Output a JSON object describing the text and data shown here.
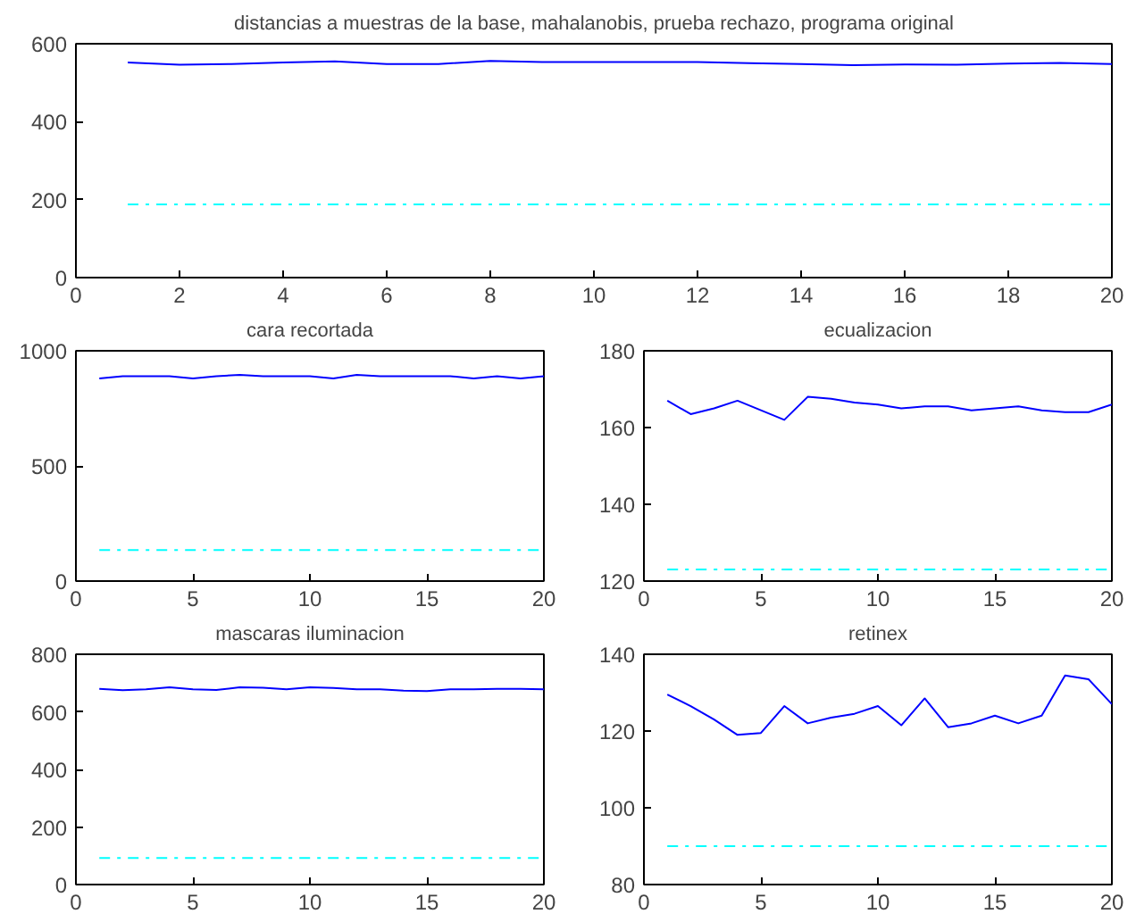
{
  "chart_data": [
    {
      "type": "line",
      "title": "distancias a muestras de la base, mahalanobis, prueba rechazo, programa original",
      "x": [
        1,
        2,
        3,
        4,
        5,
        6,
        7,
        8,
        9,
        10,
        11,
        12,
        13,
        14,
        15,
        16,
        17,
        18,
        19,
        20
      ],
      "xlim": [
        0,
        20
      ],
      "xticks": [
        0,
        2,
        4,
        6,
        8,
        10,
        12,
        14,
        16,
        18,
        20
      ],
      "ylim": [
        0,
        600
      ],
      "yticks": [
        0,
        200,
        400,
        600
      ],
      "grid": false,
      "series": [
        {
          "color": "#0000ff",
          "line_style": "solid",
          "values": [
            552,
            546,
            548,
            552,
            555,
            548,
            548,
            556,
            553,
            553,
            553,
            553,
            550,
            548,
            545,
            547,
            546,
            549,
            551,
            548
          ]
        },
        {
          "color": "#00ffff",
          "line_style": "dashed",
          "values": [
            188,
            188,
            188,
            188,
            188,
            188,
            188,
            188,
            188,
            188,
            188,
            188,
            188,
            188,
            188,
            188,
            188,
            188,
            188,
            188
          ]
        }
      ]
    },
    {
      "type": "line",
      "title": "cara recortada",
      "x": [
        1,
        2,
        3,
        4,
        5,
        6,
        7,
        8,
        9,
        10,
        11,
        12,
        13,
        14,
        15,
        16,
        17,
        18,
        19,
        20
      ],
      "xlim": [
        0,
        20
      ],
      "xticks": [
        0,
        5,
        10,
        15,
        20
      ],
      "ylim": [
        0,
        1000
      ],
      "yticks": [
        0,
        500,
        1000
      ],
      "grid": false,
      "series": [
        {
          "color": "#0000ff",
          "line_style": "solid",
          "values": [
            880,
            890,
            890,
            890,
            880,
            890,
            895,
            890,
            890,
            890,
            880,
            895,
            890,
            890,
            890,
            890,
            880,
            890,
            880,
            890
          ]
        },
        {
          "color": "#00ffff",
          "line_style": "dashed",
          "values": [
            135,
            135,
            135,
            135,
            135,
            135,
            135,
            135,
            135,
            135,
            135,
            135,
            135,
            135,
            135,
            135,
            135,
            135,
            135,
            135
          ]
        }
      ]
    },
    {
      "type": "line",
      "title": "ecualizacion",
      "x": [
        1,
        2,
        3,
        4,
        5,
        6,
        7,
        8,
        9,
        10,
        11,
        12,
        13,
        14,
        15,
        16,
        17,
        18,
        19,
        20
      ],
      "xlim": [
        0,
        20
      ],
      "xticks": [
        0,
        5,
        10,
        15,
        20
      ],
      "ylim": [
        120,
        180
      ],
      "yticks": [
        120,
        140,
        160,
        180
      ],
      "grid": false,
      "series": [
        {
          "color": "#0000ff",
          "line_style": "solid",
          "values": [
            167,
            163.5,
            165,
            167,
            164.5,
            162,
            168,
            167.5,
            166.5,
            166,
            165,
            165.5,
            165.5,
            164.5,
            165,
            165.5,
            164.5,
            164,
            164,
            166
          ]
        },
        {
          "color": "#00ffff",
          "line_style": "dashed",
          "values": [
            123,
            123,
            123,
            123,
            123,
            123,
            123,
            123,
            123,
            123,
            123,
            123,
            123,
            123,
            123,
            123,
            123,
            123,
            123,
            123
          ]
        }
      ]
    },
    {
      "type": "line",
      "title": "mascaras iluminacion",
      "x": [
        1,
        2,
        3,
        4,
        5,
        6,
        7,
        8,
        9,
        10,
        11,
        12,
        13,
        14,
        15,
        16,
        17,
        18,
        19,
        20
      ],
      "xlim": [
        0,
        20
      ],
      "xticks": [
        0,
        5,
        10,
        15,
        20
      ],
      "ylim": [
        0,
        800
      ],
      "yticks": [
        0,
        200,
        400,
        600,
        800
      ],
      "grid": false,
      "series": [
        {
          "color": "#0000ff",
          "line_style": "solid",
          "values": [
            680,
            675,
            678,
            685,
            678,
            676,
            685,
            684,
            678,
            685,
            683,
            678,
            678,
            674,
            672,
            678,
            678,
            680,
            680,
            678
          ]
        },
        {
          "color": "#00ffff",
          "line_style": "dashed",
          "values": [
            92,
            92,
            92,
            92,
            92,
            92,
            92,
            92,
            92,
            92,
            92,
            92,
            92,
            92,
            92,
            92,
            92,
            92,
            92,
            92
          ]
        }
      ]
    },
    {
      "type": "line",
      "title": "retinex",
      "x": [
        1,
        2,
        3,
        4,
        5,
        6,
        7,
        8,
        9,
        10,
        11,
        12,
        13,
        14,
        15,
        16,
        17,
        18,
        19,
        20
      ],
      "xlim": [
        0,
        20
      ],
      "xticks": [
        0,
        5,
        10,
        15,
        20
      ],
      "ylim": [
        80,
        140
      ],
      "yticks": [
        80,
        100,
        120,
        140
      ],
      "grid": false,
      "series": [
        {
          "color": "#0000ff",
          "line_style": "solid",
          "values": [
            129.5,
            126.5,
            123,
            119,
            119.5,
            126.5,
            122,
            123.5,
            124.5,
            126.5,
            121.5,
            128.5,
            121,
            122,
            124,
            122,
            124,
            134.5,
            133.5,
            127
          ]
        },
        {
          "color": "#00ffff",
          "line_style": "dashed",
          "values": [
            90,
            90,
            90,
            90,
            90,
            90,
            90,
            90,
            90,
            90,
            90,
            90,
            90,
            90,
            90,
            90,
            90,
            90,
            90,
            90
          ]
        }
      ]
    }
  ]
}
